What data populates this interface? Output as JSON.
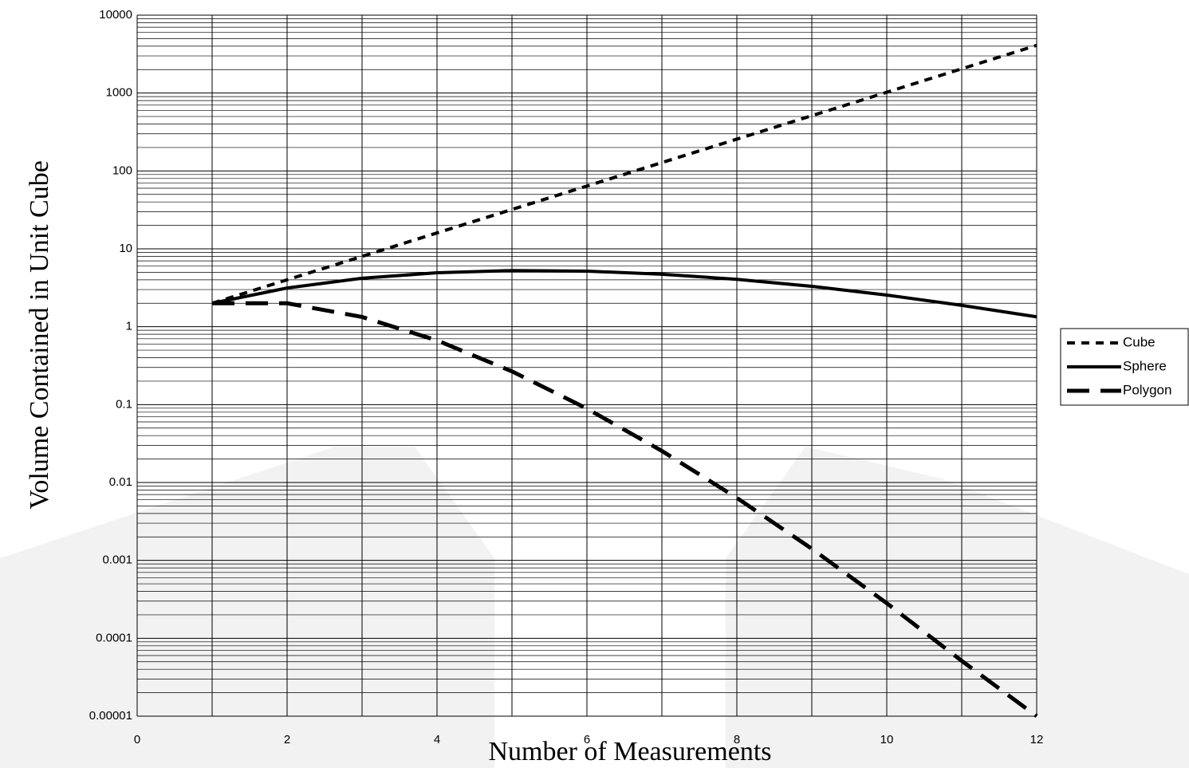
{
  "chart_data": {
    "type": "line",
    "x_label": "Number of Measurements",
    "y_label": "Volume Contained in Unit Cube",
    "x": [
      1,
      2,
      3,
      4,
      5,
      6,
      7,
      8,
      9,
      10,
      11,
      12
    ],
    "series": [
      {
        "name": "Cube",
        "color": "#000000",
        "dash": "10 8",
        "width": 4,
        "values": [
          2,
          4,
          8,
          16,
          32,
          64,
          128,
          256,
          512,
          1024,
          2048,
          4096
        ]
      },
      {
        "name": "Sphere",
        "color": "#000000",
        "dash": "none",
        "width": 4,
        "values": [
          2,
          3.14,
          4.19,
          4.93,
          5.26,
          5.17,
          4.72,
          4.06,
          3.3,
          2.55,
          1.88,
          1.34
        ]
      },
      {
        "name": "Polygon",
        "color": "#000000",
        "dash": "28 14",
        "width": 5,
        "values": [
          2,
          2,
          1.333,
          0.667,
          0.267,
          0.0889,
          0.0254,
          0.00635,
          0.00141,
          0.000282,
          5.13e-05,
          1e-05
        ]
      }
    ],
    "xlim": [
      0,
      12
    ],
    "xticks": [
      0,
      2,
      4,
      6,
      8,
      10,
      12
    ],
    "xgrid": [
      0,
      1,
      2,
      3,
      4,
      5,
      6,
      7,
      8,
      9,
      10,
      11,
      12
    ],
    "ylim": [
      1e-05,
      10000
    ],
    "yticks": [
      1e-05,
      0.0001,
      0.001,
      0.01,
      0.1,
      1,
      10,
      100,
      1000,
      10000
    ],
    "log_y": true,
    "grid": true,
    "minor_grid": true,
    "legend": "right"
  }
}
